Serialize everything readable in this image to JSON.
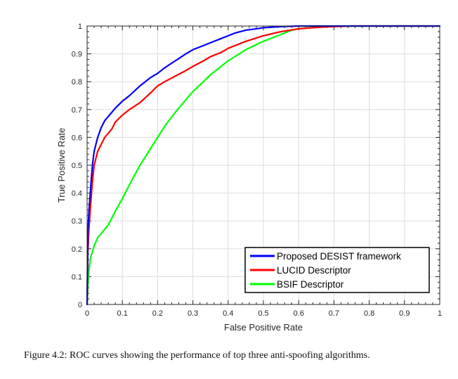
{
  "chart_data": {
    "type": "line",
    "xlabel": "False Positive Rate",
    "ylabel": "True Positive Rate",
    "xlim": [
      0,
      1
    ],
    "ylim": [
      0,
      1
    ],
    "xticks": [
      "0",
      "0.1",
      "0.2",
      "0.3",
      "0.4",
      "0.5",
      "0.6",
      "0.7",
      "0.8",
      "0.9",
      "1"
    ],
    "yticks": [
      "0",
      "0.1",
      "0.2",
      "0.3",
      "0.4",
      "0.5",
      "0.6",
      "0.7",
      "0.8",
      "0.9",
      "1"
    ],
    "grid": true,
    "legend_position": "bottom-right",
    "series": [
      {
        "name": "Proposed DESIST framework",
        "color": "#0000ff",
        "x": [
          0,
          0.002,
          0.005,
          0.01,
          0.015,
          0.02,
          0.03,
          0.04,
          0.05,
          0.06,
          0.07,
          0.08,
          0.1,
          0.12,
          0.15,
          0.18,
          0.2,
          0.22,
          0.25,
          0.28,
          0.3,
          0.33,
          0.35,
          0.38,
          0.4,
          0.42,
          0.45,
          0.48,
          0.5,
          0.55,
          0.6,
          0.7,
          0.8,
          0.9,
          1.0
        ],
        "y": [
          0,
          0.25,
          0.33,
          0.42,
          0.5,
          0.55,
          0.6,
          0.635,
          0.66,
          0.675,
          0.69,
          0.705,
          0.73,
          0.75,
          0.785,
          0.815,
          0.83,
          0.85,
          0.875,
          0.9,
          0.915,
          0.93,
          0.94,
          0.955,
          0.965,
          0.975,
          0.985,
          0.99,
          0.994,
          0.998,
          1.0,
          1.0,
          1.0,
          1.0,
          1.0
        ]
      },
      {
        "name": "LUCID Descriptor",
        "color": "#ff0000",
        "x": [
          0,
          0.002,
          0.005,
          0.01,
          0.015,
          0.02,
          0.03,
          0.04,
          0.05,
          0.06,
          0.07,
          0.08,
          0.1,
          0.12,
          0.15,
          0.18,
          0.2,
          0.22,
          0.25,
          0.28,
          0.3,
          0.33,
          0.35,
          0.38,
          0.4,
          0.45,
          0.5,
          0.55,
          0.6,
          0.65,
          0.7,
          0.75,
          0.8,
          0.9,
          1.0
        ],
        "y": [
          0,
          0.18,
          0.27,
          0.36,
          0.44,
          0.5,
          0.55,
          0.575,
          0.6,
          0.615,
          0.63,
          0.655,
          0.68,
          0.7,
          0.725,
          0.76,
          0.785,
          0.8,
          0.82,
          0.84,
          0.855,
          0.875,
          0.89,
          0.905,
          0.92,
          0.945,
          0.965,
          0.98,
          0.99,
          0.995,
          0.998,
          1.0,
          1.0,
          1.0,
          1.0
        ]
      },
      {
        "name": "BSIF Descriptor",
        "color": "#00ff00",
        "x": [
          0,
          0.002,
          0.005,
          0.01,
          0.02,
          0.03,
          0.05,
          0.06,
          0.07,
          0.08,
          0.1,
          0.12,
          0.15,
          0.18,
          0.2,
          0.22,
          0.25,
          0.28,
          0.3,
          0.33,
          0.35,
          0.38,
          0.4,
          0.45,
          0.5,
          0.55,
          0.58,
          0.6,
          0.65,
          0.7,
          0.8,
          0.9,
          1.0
        ],
        "y": [
          0,
          0.06,
          0.12,
          0.17,
          0.21,
          0.24,
          0.27,
          0.285,
          0.31,
          0.335,
          0.38,
          0.43,
          0.5,
          0.56,
          0.6,
          0.64,
          0.69,
          0.735,
          0.765,
          0.8,
          0.825,
          0.855,
          0.875,
          0.915,
          0.945,
          0.97,
          0.985,
          0.99,
          0.996,
          0.999,
          1.0,
          1.0,
          1.0
        ]
      }
    ]
  },
  "caption": "Figure 4.2: ROC curves showing the performance of top three anti-spoofing algorithms."
}
